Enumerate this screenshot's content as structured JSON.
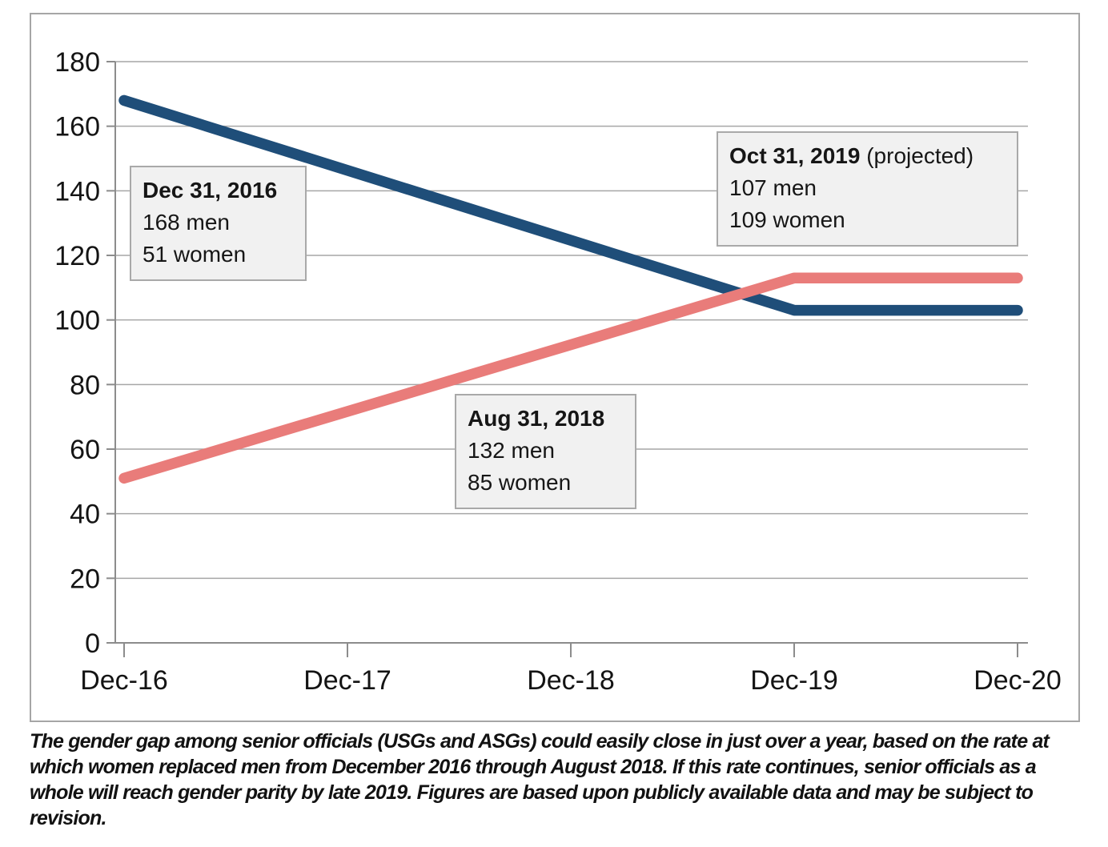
{
  "chart_data": {
    "type": "line",
    "title": "",
    "xlabel": "",
    "ylabel": "",
    "x_categories": [
      "Dec-16",
      "Dec-17",
      "Dec-18",
      "Dec-19",
      "Dec-20"
    ],
    "y_ticks": [
      180,
      160,
      140,
      120,
      100,
      80,
      60,
      40,
      20,
      0
    ],
    "ylim": [
      0,
      180
    ],
    "grid": true,
    "legend": "none",
    "colors": {
      "men": "#1f4e79",
      "women": "#e97c7a",
      "gridline": "#a6a6a6",
      "axis": "#8c8c8c",
      "annotation_fill": "#f1f1f1",
      "annotation_border": "#a9a9a9"
    },
    "series": [
      {
        "name": "men",
        "color": "#1f4e79",
        "points": [
          {
            "x": "Dec-16",
            "y": 168
          },
          {
            "x": "Dec-19",
            "y": 103
          },
          {
            "x": "Dec-20",
            "y": 103
          }
        ]
      },
      {
        "name": "women",
        "color": "#e97c7a",
        "points": [
          {
            "x": "Dec-16",
            "y": 51
          },
          {
            "x": "Dec-19",
            "y": 113
          },
          {
            "x": "Dec-20",
            "y": 113
          }
        ]
      }
    ],
    "annotations": [
      {
        "title": "Dec 31, 2016",
        "suffix": "",
        "lines": [
          "168 men",
          "51 women"
        ]
      },
      {
        "title": "Aug 31, 2018",
        "suffix": "",
        "lines": [
          "132 men",
          "85 women"
        ]
      },
      {
        "title": "Oct 31, 2019",
        "suffix": " (projected)",
        "lines": [
          "107 men",
          "109 women"
        ]
      }
    ]
  },
  "caption": {
    "lines": [
      "The gender gap among senior officials (USGs and ASGs) could easily close in just over a year, based on the rate at",
      "which women replaced men from December 2016 through August 2018. If this rate continues, senior officials as a",
      "whole will reach gender parity by late 2019. Figures are based upon publicly available data and may be subject to",
      "revision."
    ]
  }
}
